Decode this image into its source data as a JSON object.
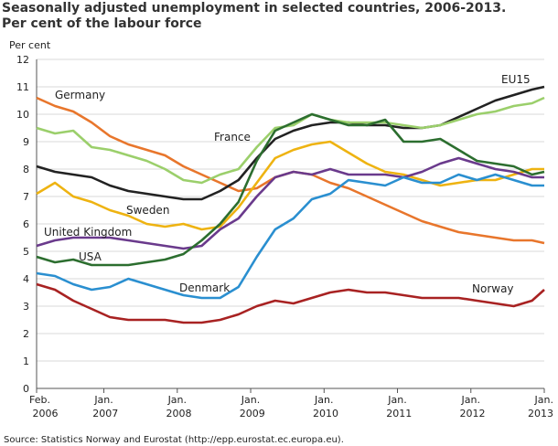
{
  "chart_data": {
    "type": "line",
    "title": "Seasonally adjusted unemployment in selected countries, 2006-2013.",
    "subtitle": "Per cent of the labour force",
    "y_label": "Per cent",
    "source": "Source: Statistics Norway and Eurostat (http://epp.eurostat.ec.europa.eu).",
    "x": [
      "2006-02",
      "2006-05",
      "2006-08",
      "2006-11",
      "2007-02",
      "2007-05",
      "2007-08",
      "2007-11",
      "2008-02",
      "2008-05",
      "2008-08",
      "2008-11",
      "2009-02",
      "2009-05",
      "2009-08",
      "2009-11",
      "2010-02",
      "2010-05",
      "2010-08",
      "2010-11",
      "2011-02",
      "2011-05",
      "2011-08",
      "2011-11",
      "2012-02",
      "2012-05",
      "2012-08",
      "2012-11",
      "2013-01"
    ],
    "xlim": [
      "2006-02",
      "2013-01"
    ],
    "xticks": [
      {
        "value": "2006-02",
        "label": "Feb. 2006"
      },
      {
        "value": "2007-01",
        "label": "Jan. 2007"
      },
      {
        "value": "2008-01",
        "label": "Jan. 2008"
      },
      {
        "value": "2009-01",
        "label": "Jan. 2009"
      },
      {
        "value": "2010-01",
        "label": "Jan. 2010"
      },
      {
        "value": "2011-01",
        "label": "Jan. 2011"
      },
      {
        "value": "2012-01",
        "label": "Jan. 2012"
      },
      {
        "value": "2013-01",
        "label": "Jan. 2013"
      }
    ],
    "ylim": [
      0,
      12
    ],
    "yticks": [
      0,
      1,
      2,
      3,
      4,
      5,
      6,
      7,
      8,
      9,
      10,
      11,
      12
    ],
    "grid": true,
    "series": [
      {
        "name": "Germany",
        "color": "#e8762c",
        "values": [
          10.6,
          10.3,
          10.1,
          9.7,
          9.2,
          8.9,
          8.7,
          8.5,
          8.1,
          7.8,
          7.5,
          7.2,
          7.3,
          7.7,
          7.9,
          7.8,
          7.5,
          7.3,
          7.0,
          6.7,
          6.4,
          6.1,
          5.9,
          5.7,
          5.6,
          5.5,
          5.4,
          5.4,
          5.3
        ]
      },
      {
        "name": "EU15",
        "color": "#222222",
        "values": [
          8.1,
          7.9,
          7.8,
          7.7,
          7.4,
          7.2,
          7.1,
          7.0,
          6.9,
          6.9,
          7.2,
          7.6,
          8.4,
          9.1,
          9.4,
          9.6,
          9.7,
          9.7,
          9.6,
          9.6,
          9.5,
          9.5,
          9.6,
          9.9,
          10.2,
          10.5,
          10.7,
          10.9,
          11.0
        ]
      },
      {
        "name": "France",
        "color": "#9bcf6b",
        "values": [
          9.5,
          9.3,
          9.4,
          8.8,
          8.7,
          8.5,
          8.3,
          8.0,
          7.6,
          7.5,
          7.8,
          8.0,
          8.8,
          9.5,
          9.6,
          10.0,
          9.8,
          9.7,
          9.7,
          9.7,
          9.6,
          9.5,
          9.6,
          9.8,
          10.0,
          10.1,
          10.3,
          10.4,
          10.6
        ]
      },
      {
        "name": "Sweden",
        "color": "#eeb311",
        "values": [
          7.1,
          7.5,
          7.0,
          6.8,
          6.5,
          6.3,
          6.0,
          5.9,
          6.0,
          5.8,
          5.9,
          6.6,
          7.5,
          8.4,
          8.7,
          8.9,
          9.0,
          8.6,
          8.2,
          7.9,
          7.8,
          7.6,
          7.4,
          7.5,
          7.6,
          7.6,
          7.8,
          8.0,
          8.0
        ]
      },
      {
        "name": "United Kingdom",
        "color": "#6a3a8c",
        "values": [
          5.2,
          5.4,
          5.5,
          5.5,
          5.5,
          5.4,
          5.3,
          5.2,
          5.1,
          5.2,
          5.8,
          6.2,
          7.0,
          7.7,
          7.9,
          7.8,
          8.0,
          7.8,
          7.8,
          7.8,
          7.7,
          7.9,
          8.2,
          8.4,
          8.2,
          8.0,
          7.9,
          7.7,
          7.7
        ]
      },
      {
        "name": "USA",
        "color": "#2c6e2f",
        "values": [
          4.8,
          4.6,
          4.7,
          4.5,
          4.5,
          4.5,
          4.6,
          4.7,
          4.9,
          5.4,
          6.0,
          6.8,
          8.3,
          9.4,
          9.7,
          10.0,
          9.8,
          9.6,
          9.6,
          9.8,
          9.0,
          9.0,
          9.1,
          8.7,
          8.3,
          8.2,
          8.1,
          7.8,
          7.9
        ]
      },
      {
        "name": "Denmark",
        "color": "#2a8fd0",
        "values": [
          4.2,
          4.1,
          3.8,
          3.6,
          3.7,
          4.0,
          3.8,
          3.6,
          3.4,
          3.3,
          3.3,
          3.7,
          4.8,
          5.8,
          6.2,
          6.9,
          7.1,
          7.6,
          7.5,
          7.4,
          7.7,
          7.5,
          7.5,
          7.8,
          7.6,
          7.8,
          7.6,
          7.4,
          7.4
        ]
      },
      {
        "name": "Norway",
        "color": "#a82222",
        "values": [
          3.8,
          3.6,
          3.2,
          2.9,
          2.6,
          2.5,
          2.5,
          2.5,
          2.4,
          2.4,
          2.5,
          2.7,
          3.0,
          3.2,
          3.1,
          3.3,
          3.5,
          3.6,
          3.5,
          3.5,
          3.4,
          3.3,
          3.3,
          3.3,
          3.2,
          3.1,
          3.0,
          3.2,
          3.6
        ]
      }
    ]
  }
}
